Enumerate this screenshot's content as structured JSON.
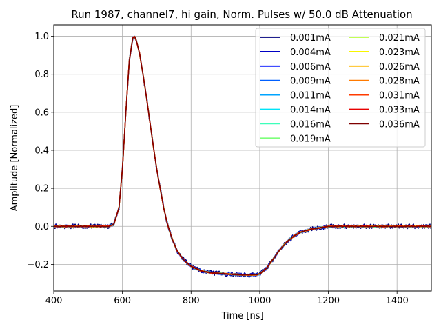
{
  "chart_data": {
    "type": "line",
    "title": "Run 1987, channel7, hi gain, Norm. Pulses w/ 50.0 dB Attenuation",
    "xlabel": "Time [ns]",
    "ylabel": "Amplitude [Normalized]",
    "xlim": [
      400,
      1500
    ],
    "ylim": [
      -0.34,
      1.06
    ],
    "grid": true,
    "legend_position": "top-right",
    "legend_columns": 2,
    "xticks": [
      {
        "value": 400,
        "label": "400"
      },
      {
        "value": 600,
        "label": "600"
      },
      {
        "value": 800,
        "label": "800"
      },
      {
        "value": 1000,
        "label": "1000"
      },
      {
        "value": 1200,
        "label": "1200"
      },
      {
        "value": 1400,
        "label": "1400"
      }
    ],
    "yticks": [
      {
        "value": -0.2,
        "label": "−0.2"
      },
      {
        "value": 0.0,
        "label": "0.0"
      },
      {
        "value": 0.2,
        "label": "0.2"
      },
      {
        "value": 0.4,
        "label": "0.4"
      },
      {
        "value": 0.6,
        "label": "0.6"
      },
      {
        "value": 0.8,
        "label": "0.8"
      },
      {
        "value": 1.0,
        "label": "1.0"
      }
    ],
    "x": [
      400,
      560,
      575,
      590,
      600,
      610,
      620,
      630,
      635,
      640,
      650,
      660,
      670,
      680,
      690,
      700,
      710,
      720,
      730,
      740,
      750,
      760,
      780,
      800,
      830,
      860,
      900,
      950,
      990,
      1000,
      1020,
      1040,
      1060,
      1080,
      1100,
      1120,
      1150,
      1200,
      1300,
      1400,
      1500
    ],
    "series": [
      {
        "name": "0.001mA",
        "color": "#00007f",
        "noise": 0.012,
        "values": [
          0.0,
          0.0,
          0.01,
          0.1,
          0.3,
          0.6,
          0.87,
          0.99,
          1.0,
          0.98,
          0.91,
          0.8,
          0.68,
          0.55,
          0.42,
          0.3,
          0.2,
          0.1,
          0.02,
          -0.04,
          -0.09,
          -0.13,
          -0.18,
          -0.21,
          -0.235,
          -0.245,
          -0.25,
          -0.255,
          -0.255,
          -0.25,
          -0.22,
          -0.17,
          -0.12,
          -0.08,
          -0.05,
          -0.03,
          -0.015,
          0.0,
          0.0,
          0.0,
          0.0
        ]
      },
      {
        "name": "0.004mA",
        "color": "#0000c4",
        "noise": 0.008,
        "values": [
          0.0,
          0.0,
          0.01,
          0.1,
          0.3,
          0.6,
          0.87,
          0.99,
          1.0,
          0.98,
          0.91,
          0.8,
          0.68,
          0.55,
          0.42,
          0.3,
          0.2,
          0.1,
          0.02,
          -0.04,
          -0.09,
          -0.13,
          -0.18,
          -0.21,
          -0.235,
          -0.245,
          -0.25,
          -0.255,
          -0.255,
          -0.25,
          -0.22,
          -0.17,
          -0.12,
          -0.08,
          -0.05,
          -0.03,
          -0.015,
          0.0,
          0.0,
          0.0,
          0.0
        ]
      },
      {
        "name": "0.006mA",
        "color": "#0010ff",
        "noise": 0.006,
        "values": [
          0.0,
          0.0,
          0.01,
          0.1,
          0.3,
          0.6,
          0.87,
          0.99,
          1.0,
          0.98,
          0.91,
          0.8,
          0.68,
          0.55,
          0.42,
          0.3,
          0.2,
          0.1,
          0.02,
          -0.04,
          -0.09,
          -0.13,
          -0.18,
          -0.21,
          -0.235,
          -0.245,
          -0.25,
          -0.255,
          -0.255,
          -0.25,
          -0.22,
          -0.17,
          -0.12,
          -0.08,
          -0.05,
          -0.03,
          -0.015,
          0.0,
          0.0,
          0.0,
          0.0
        ]
      },
      {
        "name": "0.009mA",
        "color": "#0060ff",
        "noise": 0.005,
        "values": [
          0.0,
          0.0,
          0.01,
          0.1,
          0.3,
          0.6,
          0.87,
          0.99,
          1.0,
          0.98,
          0.91,
          0.8,
          0.68,
          0.55,
          0.42,
          0.3,
          0.2,
          0.1,
          0.02,
          -0.04,
          -0.09,
          -0.13,
          -0.18,
          -0.21,
          -0.235,
          -0.245,
          -0.25,
          -0.255,
          -0.255,
          -0.25,
          -0.22,
          -0.17,
          -0.12,
          -0.08,
          -0.05,
          -0.03,
          -0.015,
          0.0,
          0.0,
          0.0,
          0.0
        ]
      },
      {
        "name": "0.011mA",
        "color": "#00a4ff",
        "noise": 0.004,
        "values": [
          0.0,
          0.0,
          0.01,
          0.1,
          0.3,
          0.6,
          0.87,
          0.99,
          1.0,
          0.98,
          0.91,
          0.8,
          0.68,
          0.55,
          0.42,
          0.3,
          0.2,
          0.1,
          0.02,
          -0.04,
          -0.09,
          -0.13,
          -0.18,
          -0.21,
          -0.235,
          -0.245,
          -0.25,
          -0.255,
          -0.255,
          -0.25,
          -0.22,
          -0.17,
          -0.12,
          -0.08,
          -0.05,
          -0.03,
          -0.015,
          0.0,
          0.0,
          0.0,
          0.0
        ]
      },
      {
        "name": "0.014mA",
        "color": "#00e4f8",
        "noise": 0.004,
        "values": [
          0.0,
          0.0,
          0.01,
          0.1,
          0.3,
          0.6,
          0.87,
          0.99,
          1.0,
          0.98,
          0.91,
          0.8,
          0.68,
          0.55,
          0.42,
          0.3,
          0.2,
          0.1,
          0.02,
          -0.04,
          -0.09,
          -0.13,
          -0.18,
          -0.21,
          -0.235,
          -0.245,
          -0.25,
          -0.255,
          -0.255,
          -0.25,
          -0.22,
          -0.17,
          -0.12,
          -0.08,
          -0.05,
          -0.03,
          -0.015,
          0.0,
          0.0,
          0.0,
          0.0
        ]
      },
      {
        "name": "0.016mA",
        "color": "#3dffba",
        "noise": 0.003,
        "values": [
          0.0,
          0.0,
          0.01,
          0.1,
          0.3,
          0.6,
          0.87,
          0.99,
          1.0,
          0.98,
          0.91,
          0.8,
          0.68,
          0.55,
          0.42,
          0.3,
          0.2,
          0.1,
          0.02,
          -0.04,
          -0.09,
          -0.13,
          -0.18,
          -0.21,
          -0.235,
          -0.245,
          -0.25,
          -0.255,
          -0.255,
          -0.25,
          -0.22,
          -0.17,
          -0.12,
          -0.08,
          -0.05,
          -0.03,
          -0.015,
          0.0,
          0.0,
          0.0,
          0.0
        ]
      },
      {
        "name": "0.019mA",
        "color": "#7dff7a",
        "noise": 0.003,
        "values": [
          0.0,
          0.0,
          0.01,
          0.1,
          0.3,
          0.6,
          0.87,
          0.99,
          1.0,
          0.98,
          0.91,
          0.8,
          0.68,
          0.55,
          0.42,
          0.3,
          0.2,
          0.1,
          0.02,
          -0.04,
          -0.09,
          -0.13,
          -0.18,
          -0.21,
          -0.235,
          -0.245,
          -0.25,
          -0.255,
          -0.255,
          -0.25,
          -0.22,
          -0.17,
          -0.12,
          -0.08,
          -0.05,
          -0.03,
          -0.015,
          0.0,
          0.0,
          0.0,
          0.0
        ]
      },
      {
        "name": "0.021mA",
        "color": "#baff3d",
        "noise": 0.003,
        "values": [
          0.0,
          0.0,
          0.01,
          0.1,
          0.3,
          0.6,
          0.87,
          0.99,
          1.0,
          0.98,
          0.91,
          0.8,
          0.68,
          0.55,
          0.42,
          0.3,
          0.2,
          0.1,
          0.02,
          -0.04,
          -0.09,
          -0.13,
          -0.18,
          -0.21,
          -0.235,
          -0.245,
          -0.25,
          -0.255,
          -0.255,
          -0.25,
          -0.22,
          -0.17,
          -0.12,
          -0.08,
          -0.05,
          -0.03,
          -0.015,
          0.0,
          0.0,
          0.0,
          0.0
        ]
      },
      {
        "name": "0.023mA",
        "color": "#f8f500",
        "noise": 0.003,
        "values": [
          0.0,
          0.0,
          0.01,
          0.1,
          0.3,
          0.6,
          0.87,
          0.99,
          1.0,
          0.98,
          0.91,
          0.8,
          0.68,
          0.55,
          0.42,
          0.3,
          0.2,
          0.1,
          0.02,
          -0.04,
          -0.09,
          -0.13,
          -0.18,
          -0.21,
          -0.235,
          -0.245,
          -0.25,
          -0.255,
          -0.255,
          -0.25,
          -0.22,
          -0.17,
          -0.12,
          -0.08,
          -0.05,
          -0.03,
          -0.015,
          0.0,
          0.0,
          0.0,
          0.0
        ]
      },
      {
        "name": "0.026mA",
        "color": "#ffb800",
        "noise": 0.003,
        "values": [
          0.0,
          0.0,
          0.01,
          0.1,
          0.3,
          0.6,
          0.87,
          0.99,
          1.0,
          0.98,
          0.91,
          0.8,
          0.68,
          0.55,
          0.42,
          0.3,
          0.2,
          0.1,
          0.02,
          -0.04,
          -0.09,
          -0.13,
          -0.18,
          -0.21,
          -0.235,
          -0.245,
          -0.25,
          -0.255,
          -0.255,
          -0.25,
          -0.22,
          -0.17,
          -0.12,
          -0.08,
          -0.05,
          -0.03,
          -0.015,
          0.0,
          0.0,
          0.0,
          0.0
        ]
      },
      {
        "name": "0.028mA",
        "color": "#ff7a00",
        "noise": 0.003,
        "values": [
          0.0,
          0.0,
          0.01,
          0.1,
          0.3,
          0.6,
          0.87,
          0.99,
          1.0,
          0.98,
          0.91,
          0.8,
          0.68,
          0.55,
          0.42,
          0.3,
          0.2,
          0.1,
          0.02,
          -0.04,
          -0.09,
          -0.13,
          -0.18,
          -0.21,
          -0.235,
          -0.245,
          -0.25,
          -0.255,
          -0.255,
          -0.25,
          -0.22,
          -0.17,
          -0.12,
          -0.08,
          -0.05,
          -0.03,
          -0.015,
          0.0,
          0.0,
          0.0,
          0.0
        ]
      },
      {
        "name": "0.031mA",
        "color": "#ff3b00",
        "noise": 0.003,
        "values": [
          0.0,
          0.0,
          0.01,
          0.1,
          0.3,
          0.6,
          0.87,
          0.99,
          1.0,
          0.98,
          0.91,
          0.8,
          0.68,
          0.55,
          0.42,
          0.3,
          0.2,
          0.1,
          0.02,
          -0.04,
          -0.09,
          -0.13,
          -0.18,
          -0.21,
          -0.235,
          -0.245,
          -0.25,
          -0.255,
          -0.255,
          -0.25,
          -0.22,
          -0.17,
          -0.12,
          -0.08,
          -0.05,
          -0.03,
          -0.015,
          0.0,
          0.0,
          0.0,
          0.0
        ]
      },
      {
        "name": "0.033mA",
        "color": "#e80000",
        "noise": 0.002,
        "values": [
          0.0,
          0.0,
          0.01,
          0.1,
          0.3,
          0.6,
          0.87,
          0.99,
          1.0,
          0.98,
          0.91,
          0.8,
          0.68,
          0.55,
          0.42,
          0.3,
          0.2,
          0.1,
          0.02,
          -0.04,
          -0.09,
          -0.13,
          -0.18,
          -0.21,
          -0.235,
          -0.245,
          -0.25,
          -0.255,
          -0.255,
          -0.25,
          -0.22,
          -0.17,
          -0.12,
          -0.08,
          -0.05,
          -0.03,
          -0.015,
          0.0,
          0.0,
          0.0,
          0.0
        ]
      },
      {
        "name": "0.036mA",
        "color": "#7f0000",
        "noise": 0.002,
        "values": [
          0.0,
          0.0,
          0.01,
          0.1,
          0.3,
          0.6,
          0.87,
          0.99,
          1.0,
          0.98,
          0.91,
          0.8,
          0.68,
          0.55,
          0.42,
          0.3,
          0.2,
          0.1,
          0.02,
          -0.04,
          -0.09,
          -0.13,
          -0.18,
          -0.21,
          -0.235,
          -0.245,
          -0.25,
          -0.255,
          -0.255,
          -0.25,
          -0.22,
          -0.17,
          -0.12,
          -0.08,
          -0.05,
          -0.03,
          -0.015,
          0.0,
          0.0,
          0.0,
          0.0
        ]
      }
    ]
  }
}
